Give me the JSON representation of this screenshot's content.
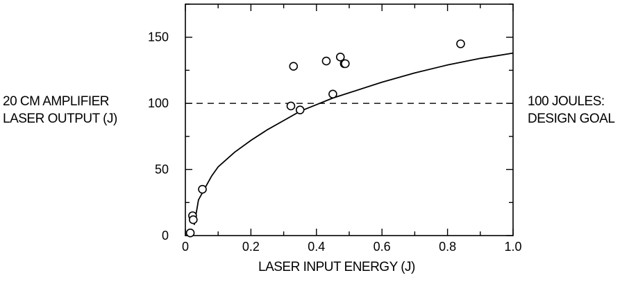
{
  "chart_data": {
    "type": "scatter",
    "xlabel": "LASER INPUT ENERGY (J)",
    "ylabel_lines": [
      "20 CM AMPLIFIER",
      "LASER OUTPUT (J)"
    ],
    "xlim": [
      0,
      1.0
    ],
    "ylim": [
      0,
      175
    ],
    "xticks": [
      "0",
      "0.2",
      "0.4",
      "0.6",
      "0.8",
      "1.0"
    ],
    "xtick_values": [
      0,
      0.2,
      0.4,
      0.6,
      0.8,
      1.0
    ],
    "yticks": [
      "0",
      "50",
      "100",
      "150"
    ],
    "ytick_values": [
      0,
      50,
      100,
      150
    ],
    "reference_line": {
      "y": 100,
      "style": "dashed",
      "label_lines": [
        "100 JOULES:",
        "DESIGN GOAL"
      ]
    },
    "series": [
      {
        "type": "scatter",
        "marker": "open-circle",
        "x": [
          0.015,
          0.022,
          0.024,
          0.052,
          0.33,
          0.35,
          0.322,
          0.45,
          0.43,
          0.473,
          0.485,
          0.488,
          0.84
        ],
        "y": [
          2,
          15,
          12,
          35,
          128,
          95,
          98,
          107,
          132,
          135,
          130,
          130,
          145
        ]
      },
      {
        "type": "line",
        "style": "solid",
        "x": [
          0.027,
          0.04,
          0.06,
          0.08,
          0.1,
          0.15,
          0.2,
          0.25,
          0.3,
          0.35,
          0.4,
          0.45,
          0.5,
          0.6,
          0.7,
          0.8,
          0.9,
          1.0
        ],
        "y": [
          8,
          27,
          36,
          45,
          52,
          63,
          72,
          80,
          87,
          94,
          99,
          104,
          108,
          116,
          123,
          129,
          134,
          138
        ]
      }
    ],
    "grid": false,
    "legend": "none"
  }
}
